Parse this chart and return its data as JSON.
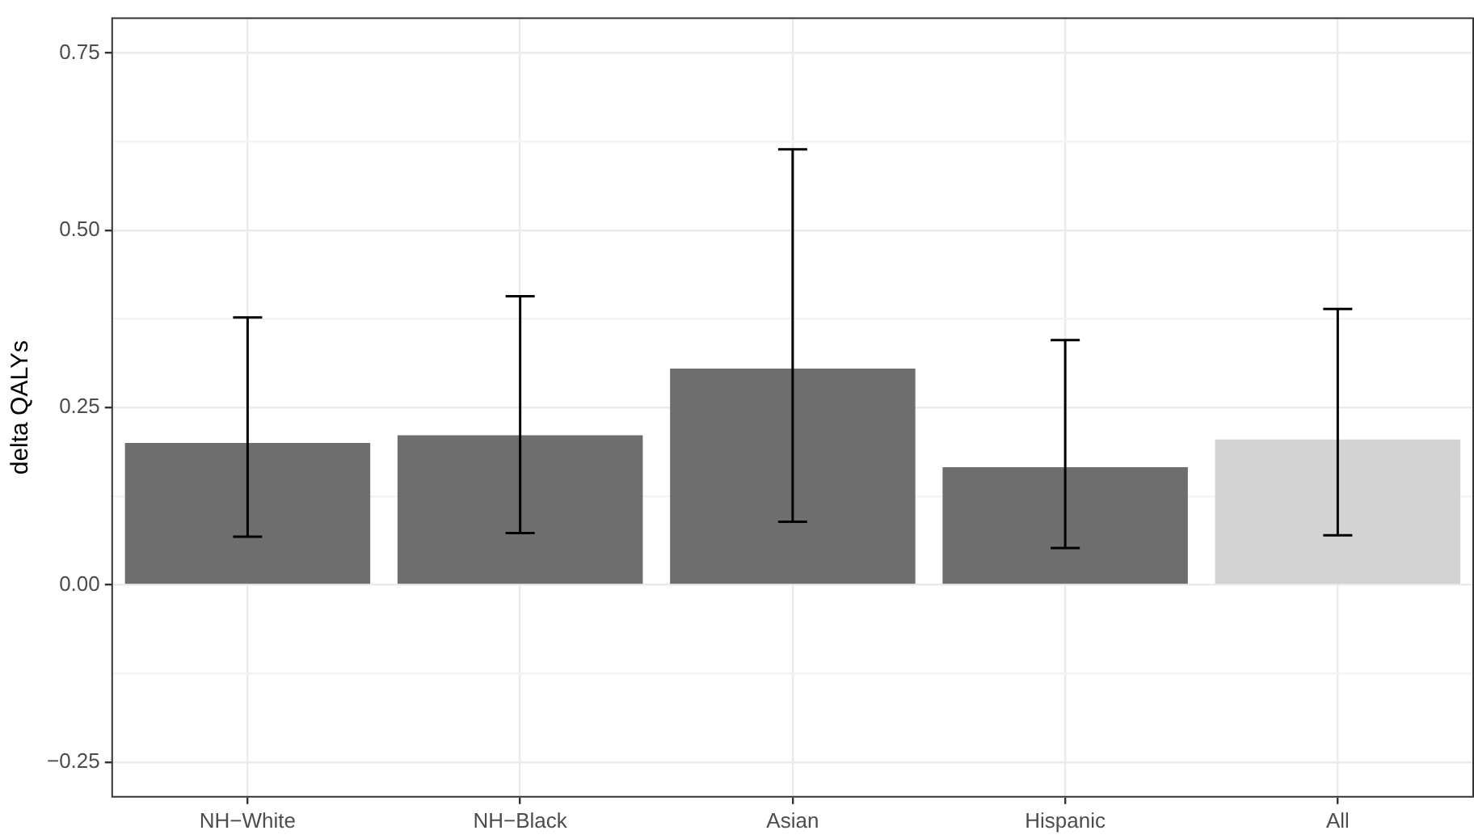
{
  "chart_data": {
    "type": "bar",
    "ylabel": "delta QALYs",
    "categories": [
      "NH−White",
      "NH−Black",
      "Asian",
      "Hispanic",
      "All"
    ],
    "values": [
      0.2,
      0.211,
      0.305,
      0.166,
      0.205
    ],
    "colors": [
      "#6e6e6e",
      "#6e6e6e",
      "#6e6e6e",
      "#6e6e6e",
      "#d3d3d3"
    ],
    "errors": [
      [
        0.068,
        0.377
      ],
      [
        0.073,
        0.407
      ],
      [
        0.089,
        0.614
      ],
      [
        0.052,
        0.345
      ],
      [
        0.07,
        0.389
      ]
    ],
    "ylim": [
      -0.3,
      0.8
    ],
    "yticks": [
      {
        "value": -0.25,
        "label": "−0.25"
      },
      {
        "value": -0.125,
        "label": null
      },
      "0.00",
      {
        "value": 0.125,
        "label": null
      },
      {
        "value": 0.25,
        "label": "0.25"
      },
      {
        "value": 0.375,
        "label": null
      },
      {
        "value": 0.5,
        "label": "0.50"
      },
      {
        "value": 0.625,
        "label": null
      },
      {
        "value": 0.75,
        "label": "0.75"
      }
    ],
    "grid": true
  }
}
